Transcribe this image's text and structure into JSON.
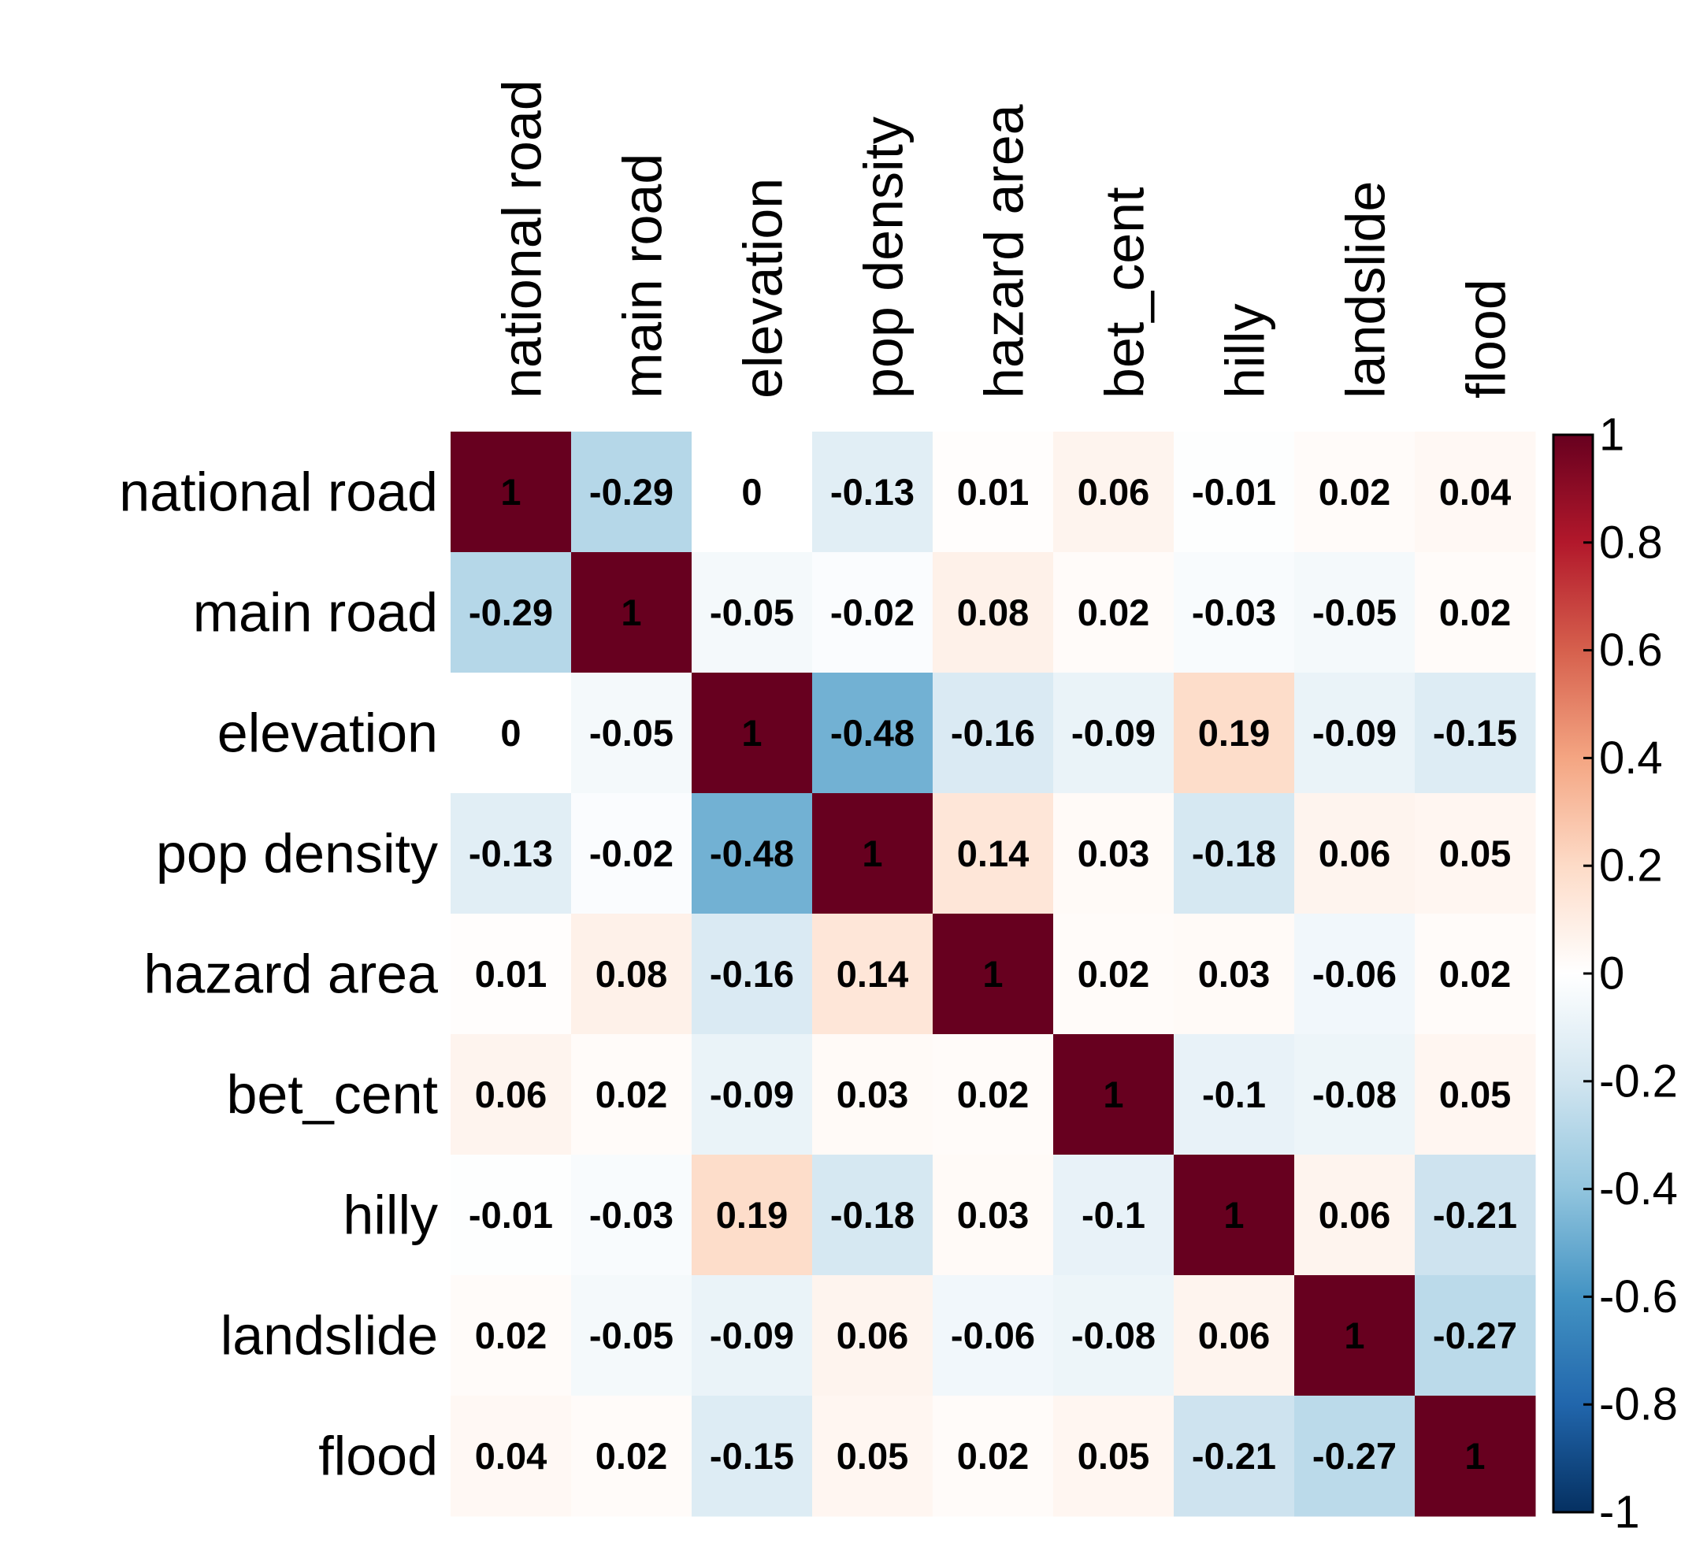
{
  "chart_data": {
    "type": "heatmap",
    "title": "",
    "xlabel": "",
    "ylabel": "",
    "variables": [
      "national road",
      "main road",
      "elevation",
      "pop density",
      "hazard area",
      "bet_cent",
      "hilly",
      "landslide",
      "flood"
    ],
    "matrix": [
      [
        1,
        -0.29,
        0,
        -0.13,
        0.01,
        0.06,
        -0.01,
        0.02,
        0.04
      ],
      [
        -0.29,
        1,
        -0.05,
        -0.02,
        0.08,
        0.02,
        -0.03,
        -0.05,
        0.02
      ],
      [
        0,
        -0.05,
        1,
        -0.48,
        -0.16,
        -0.09,
        0.19,
        -0.09,
        -0.15
      ],
      [
        -0.13,
        -0.02,
        -0.48,
        1,
        0.14,
        0.03,
        -0.18,
        0.06,
        0.05
      ],
      [
        0.01,
        0.08,
        -0.16,
        0.14,
        1,
        0.02,
        0.03,
        -0.06,
        0.02
      ],
      [
        0.06,
        0.02,
        -0.09,
        0.03,
        0.02,
        1,
        -0.1,
        -0.08,
        0.05
      ],
      [
        -0.01,
        -0.03,
        0.19,
        -0.18,
        0.03,
        -0.1,
        1,
        0.06,
        -0.21
      ],
      [
        0.02,
        -0.05,
        -0.09,
        0.06,
        -0.06,
        -0.08,
        0.06,
        1,
        -0.27
      ],
      [
        0.04,
        0.02,
        -0.15,
        0.05,
        0.02,
        0.05,
        -0.21,
        -0.27,
        1
      ]
    ],
    "colorbar": {
      "range": [
        -1,
        1
      ],
      "ticks": [
        "1",
        "0.8",
        "0.6",
        "0.4",
        "0.2",
        "0",
        "-0.2",
        "-0.4",
        "-0.6",
        "-0.8",
        "-1"
      ],
      "colors": [
        "#67001F",
        "#B2182B",
        "#D6604D",
        "#F4A582",
        "#FDDBC7",
        "#FFFFFF",
        "#D1E5F0",
        "#92C5DE",
        "#4393C3",
        "#2166AC",
        "#053061"
      ]
    }
  }
}
